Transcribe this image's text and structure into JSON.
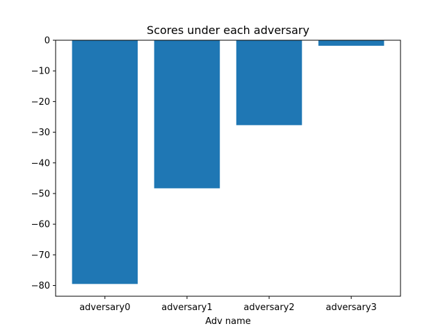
{
  "chart_data": {
    "type": "bar",
    "title": "Scores under each adversary",
    "xlabel": "Adv name",
    "ylabel": "",
    "categories": [
      "adversary0",
      "adversary1",
      "adversary2",
      "adversary3"
    ],
    "values": [
      -79.5,
      -48.3,
      -27.7,
      -1.8
    ],
    "ylim": [
      -83.5,
      0
    ],
    "yticks": [
      0,
      -10,
      -20,
      -30,
      -40,
      -50,
      -60,
      -70,
      -80
    ],
    "ytick_labels": [
      "0",
      "−10",
      "−20",
      "−30",
      "−40",
      "−50",
      "−60",
      "−70",
      "−80"
    ],
    "bar_color": "#1f77b4",
    "grid": false,
    "legend": "none"
  }
}
